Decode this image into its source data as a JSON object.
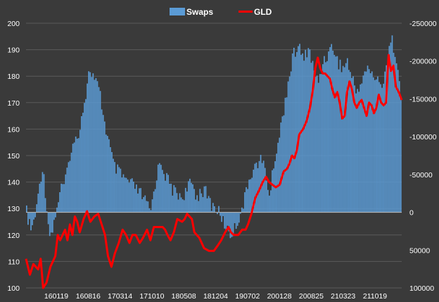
{
  "chart_data": {
    "type": "bar",
    "legend": {
      "placement": "top-center"
    },
    "series": [
      {
        "name": "Swaps",
        "type": "bar",
        "axis": "right",
        "color": "#5b9bd5"
      },
      {
        "name": "GLD",
        "type": "line",
        "axis": "left",
        "color": "#ff0000"
      }
    ],
    "left_axis": {
      "min": 100,
      "max": 200,
      "ticks": [
        "100",
        "110",
        "120",
        "130",
        "140",
        "150",
        "160",
        "170",
        "180",
        "190",
        "200"
      ]
    },
    "right_axis": {
      "inverted": true,
      "min": -250000,
      "max": 100000,
      "ticks": [
        "100000",
        "50000",
        "0",
        "-50000",
        "-100000",
        "-150000",
        "-200000",
        "-250000"
      ]
    },
    "x_tick_labels": [
      "160119",
      "160816",
      "170314",
      "171010",
      "180508",
      "181204",
      "190702",
      "200128",
      "200825",
      "210323",
      "211019"
    ],
    "grid": "horizontal",
    "swaps_anchors": [
      [
        0,
        0
      ],
      [
        0.5,
        15000
      ],
      [
        1,
        25000
      ],
      [
        1.5,
        10000
      ],
      [
        2,
        0
      ],
      [
        2.7,
        -40000
      ],
      [
        3.3,
        -60000
      ],
      [
        4,
        -20000
      ],
      [
        4.5,
        20000
      ],
      [
        5.2,
        30000
      ],
      [
        6,
        0
      ],
      [
        7,
        -30000
      ],
      [
        8,
        -40000
      ],
      [
        9,
        -80000
      ],
      [
        10.5,
        -100000
      ],
      [
        12,
        -150000
      ],
      [
        13,
        -190000
      ],
      [
        14,
        -175000
      ],
      [
        15,
        -160000
      ],
      [
        16,
        -120000
      ],
      [
        17,
        -90000
      ],
      [
        18,
        -60000
      ],
      [
        20,
        -45000
      ],
      [
        22,
        -35000
      ],
      [
        24,
        -20000
      ],
      [
        25.5,
        0
      ],
      [
        26.5,
        -40000
      ],
      [
        27.5,
        -70000
      ],
      [
        28.5,
        -50000
      ],
      [
        30,
        -30000
      ],
      [
        32,
        -20000
      ],
      [
        34,
        -40000
      ],
      [
        35,
        -20000
      ],
      [
        36,
        -30000
      ],
      [
        37,
        -25000
      ],
      [
        38,
        -10000
      ],
      [
        39,
        -5000
      ],
      [
        40,
        5000
      ],
      [
        41,
        20000
      ],
      [
        42,
        30000
      ],
      [
        43,
        20000
      ],
      [
        44,
        0
      ],
      [
        45,
        -20000
      ],
      [
        46,
        -50000
      ],
      [
        47,
        -60000
      ],
      [
        48,
        -70000
      ],
      [
        49,
        -60000
      ],
      [
        50,
        -20000
      ],
      [
        51,
        -70000
      ],
      [
        52,
        -100000
      ],
      [
        53,
        -140000
      ],
      [
        54,
        -180000
      ],
      [
        55,
        -210000
      ],
      [
        56,
        -220000
      ],
      [
        57,
        -200000
      ],
      [
        58,
        -220000
      ],
      [
        59,
        -190000
      ],
      [
        60,
        -170000
      ],
      [
        61,
        -200000
      ],
      [
        62,
        -210000
      ],
      [
        63,
        -220000
      ],
      [
        64,
        -200000
      ],
      [
        65,
        -190000
      ],
      [
        66,
        -200000
      ],
      [
        67,
        -175000
      ],
      [
        68,
        -160000
      ],
      [
        69,
        -175000
      ],
      [
        70,
        -190000
      ],
      [
        71,
        -185000
      ],
      [
        72,
        -175000
      ],
      [
        73,
        -165000
      ],
      [
        74,
        -195000
      ],
      [
        75,
        -230000
      ],
      [
        76,
        -210000
      ],
      [
        77,
        -150000
      ]
    ],
    "gld_points": [
      [
        0,
        111
      ],
      [
        0.8,
        105
      ],
      [
        1.5,
        109
      ],
      [
        2.5,
        107
      ],
      [
        3,
        111
      ],
      [
        3.5,
        100
      ],
      [
        4.2,
        102
      ],
      [
        5,
        108
      ],
      [
        6,
        112
      ],
      [
        6.5,
        120
      ],
      [
        7,
        118
      ],
      [
        8,
        122
      ],
      [
        8.5,
        118
      ],
      [
        9,
        124
      ],
      [
        9.5,
        120
      ],
      [
        10,
        127
      ],
      [
        10.5,
        125
      ],
      [
        11,
        121
      ],
      [
        11.8,
        126
      ],
      [
        12.5,
        129
      ],
      [
        13.2,
        125
      ],
      [
        14,
        127
      ],
      [
        14.8,
        128
      ],
      [
        15.5,
        124
      ],
      [
        16.2,
        120
      ],
      [
        16.8,
        112
      ],
      [
        17.5,
        108
      ],
      [
        18.2,
        113
      ],
      [
        19,
        117
      ],
      [
        19.8,
        122
      ],
      [
        20.5,
        120
      ],
      [
        21.2,
        117
      ],
      [
        21.8,
        120
      ],
      [
        22.5,
        120
      ],
      [
        23.3,
        117
      ],
      [
        24,
        119
      ],
      [
        24.8,
        122
      ],
      [
        25.5,
        118
      ],
      [
        26.2,
        123
      ],
      [
        27,
        123
      ],
      [
        28,
        123
      ],
      [
        28.5,
        122
      ],
      [
        29,
        120
      ],
      [
        29.6,
        118
      ],
      [
        30.3,
        121
      ],
      [
        31,
        126
      ],
      [
        32,
        125
      ],
      [
        32.5,
        126
      ],
      [
        33,
        128
      ],
      [
        34,
        126
      ],
      [
        34.5,
        121
      ],
      [
        35.5,
        119
      ],
      [
        36.5,
        115
      ],
      [
        37.5,
        114
      ],
      [
        38.5,
        114
      ],
      [
        39.3,
        116
      ],
      [
        40,
        118
      ],
      [
        40.8,
        121
      ],
      [
        41.5,
        123
      ],
      [
        42,
        121
      ],
      [
        42.6,
        120
      ],
      [
        43.5,
        120
      ],
      [
        44.3,
        122
      ],
      [
        45,
        122
      ],
      [
        45.5,
        124
      ],
      [
        46.2,
        128
      ],
      [
        47,
        134
      ],
      [
        47.8,
        137
      ],
      [
        48.5,
        140
      ],
      [
        49.2,
        142
      ],
      [
        49.8,
        140
      ],
      [
        50.5,
        139
      ],
      [
        51.2,
        138
      ],
      [
        52,
        139
      ],
      [
        52.8,
        144
      ],
      [
        53.5,
        145
      ],
      [
        54,
        147
      ],
      [
        54.5,
        150
      ],
      [
        55,
        149
      ],
      [
        55.5,
        152
      ],
      [
        56,
        158
      ],
      [
        56.8,
        160
      ],
      [
        57.5,
        163
      ],
      [
        58.2,
        168
      ],
      [
        58.8,
        175
      ],
      [
        59.3,
        183
      ],
      [
        59.8,
        187
      ],
      [
        60.3,
        183
      ],
      [
        60.8,
        181
      ],
      [
        61.3,
        181
      ],
      [
        61.8,
        180
      ],
      [
        62.3,
        179
      ],
      [
        62.8,
        175
      ],
      [
        63.3,
        172
      ],
      [
        63.8,
        174
      ],
      [
        64.3,
        170
      ],
      [
        64.8,
        164
      ],
      [
        65.3,
        165
      ],
      [
        65.8,
        174
      ],
      [
        66.3,
        178
      ],
      [
        66.8,
        175
      ],
      [
        67.3,
        170
      ],
      [
        67.8,
        168
      ],
      [
        68.3,
        170
      ],
      [
        68.8,
        171
      ],
      [
        69.3,
        168
      ],
      [
        69.8,
        165
      ],
      [
        70.3,
        170
      ],
      [
        70.8,
        169
      ],
      [
        71.3,
        166
      ],
      [
        71.8,
        168
      ],
      [
        72.3,
        173
      ],
      [
        72.8,
        170
      ],
      [
        73.3,
        169
      ],
      [
        73.8,
        170
      ],
      [
        74.3,
        188
      ],
      [
        74.8,
        182
      ],
      [
        75.3,
        184
      ],
      [
        75.8,
        176
      ],
      [
        76.4,
        174
      ],
      [
        77,
        171
      ]
    ]
  }
}
